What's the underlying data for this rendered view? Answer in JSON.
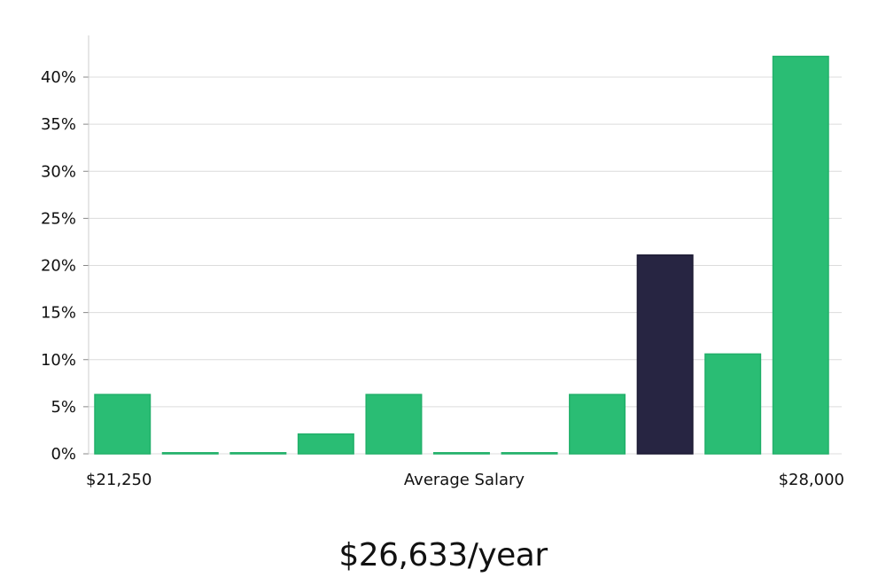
{
  "chart_data": {
    "type": "bar",
    "xlabel": "Average Salary",
    "x_range_labels": [
      "$21,250",
      "$28,000"
    ],
    "categories": [
      "",
      "",
      "",
      "",
      "",
      "",
      "",
      "",
      "",
      "",
      ""
    ],
    "values": [
      6.3,
      0,
      0,
      2.1,
      6.3,
      0,
      0,
      6.3,
      21.1,
      10.6,
      42.2
    ],
    "highlight_index": 8,
    "ylim": [
      0,
      44
    ],
    "y_ticks": [
      0,
      5,
      10,
      15,
      20,
      25,
      30,
      35,
      40
    ],
    "y_tick_labels": [
      "0%",
      "5%",
      "10%",
      "15%",
      "20%",
      "25%",
      "30%",
      "35%",
      "40%"
    ],
    "grid": true,
    "colors": {
      "bar": "#2abd74",
      "bar_edge": "#22b06a",
      "highlight": "#272542",
      "grid": "#dcdcdc",
      "axis": "#cccccc"
    }
  },
  "summary": {
    "salary_text": "$26,633/year"
  }
}
